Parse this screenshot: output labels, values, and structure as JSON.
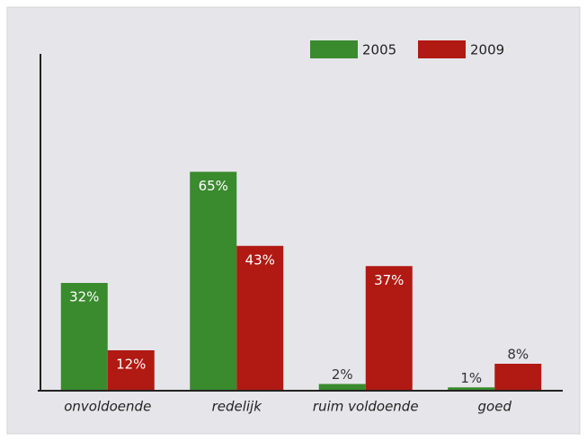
{
  "chart_data": {
    "type": "bar",
    "categories": [
      "onvoldoende",
      "redelijk",
      "ruim voldoende",
      "goed"
    ],
    "series": [
      {
        "name": "2005",
        "color": "#3a8a2e",
        "values": [
          32,
          65,
          2,
          1
        ],
        "value_labels": [
          "32%",
          "65%",
          "2%",
          "1%"
        ]
      },
      {
        "name": "2009",
        "color": "#b01a12",
        "values": [
          12,
          43,
          37,
          8
        ],
        "value_labels": [
          "12%",
          "43%",
          "37%",
          "8%"
        ]
      }
    ],
    "ylim": [
      0,
      100
    ],
    "legend": "top-right"
  }
}
